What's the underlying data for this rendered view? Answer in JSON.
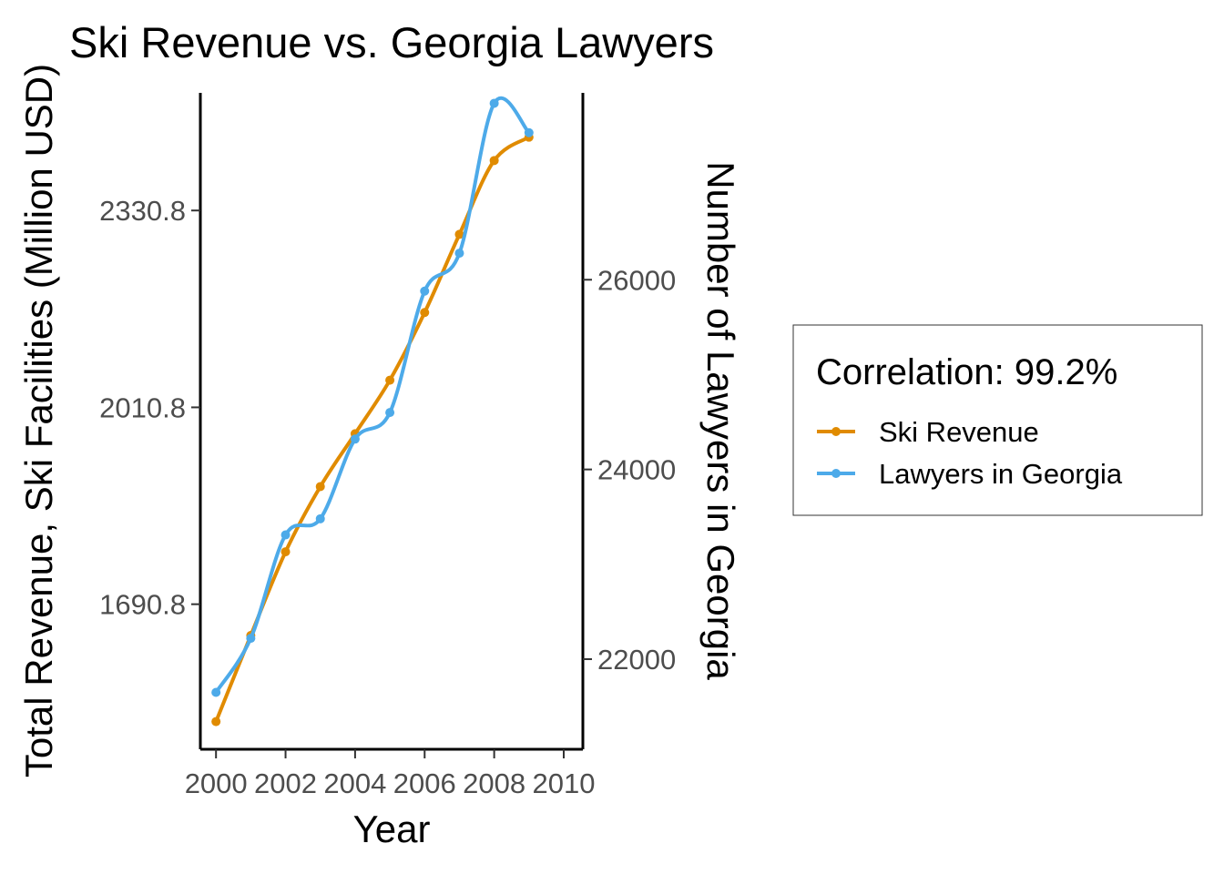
{
  "chart_data": {
    "type": "line",
    "title": "Ski Revenue vs. Georgia Lawyers",
    "xlabel": "Year",
    "ylabel_left": "Total Revenue, Ski Facilities (Million USD)",
    "ylabel_right": "Number of Lawyers in Georgia",
    "x": [
      2000,
      2001,
      2002,
      2003,
      2004,
      2005,
      2006,
      2007,
      2008,
      2009
    ],
    "x_ticks": [
      "2000",
      "2002",
      "2004",
      "2006",
      "2008",
      "2010"
    ],
    "xlim": [
      1999.55,
      2010.55
    ],
    "y_left_ticks": [
      "1690.8",
      "2010.8",
      "2330.8"
    ],
    "y_left_lim": [
      1455,
      2522
    ],
    "y_right_ticks": [
      "22000",
      "24000",
      "26000"
    ],
    "y_right_lim": [
      21050,
      27970
    ],
    "series": [
      {
        "name": "Ski Revenue",
        "axis": "left",
        "color": "#E08B00",
        "values": [
          1500,
          1640,
          1776,
          1882,
          1968,
          2055,
          2165,
          2292,
          2412,
          2450
        ]
      },
      {
        "name": "Lawyers in Georgia",
        "axis": "right",
        "color": "#4DAAE9",
        "values": [
          21650,
          22220,
          23310,
          23480,
          24320,
          24600,
          25880,
          26280,
          27860,
          27550
        ]
      }
    ],
    "legend": {
      "title": "Correlation: 99.2%",
      "position": "right"
    },
    "grid": false
  }
}
